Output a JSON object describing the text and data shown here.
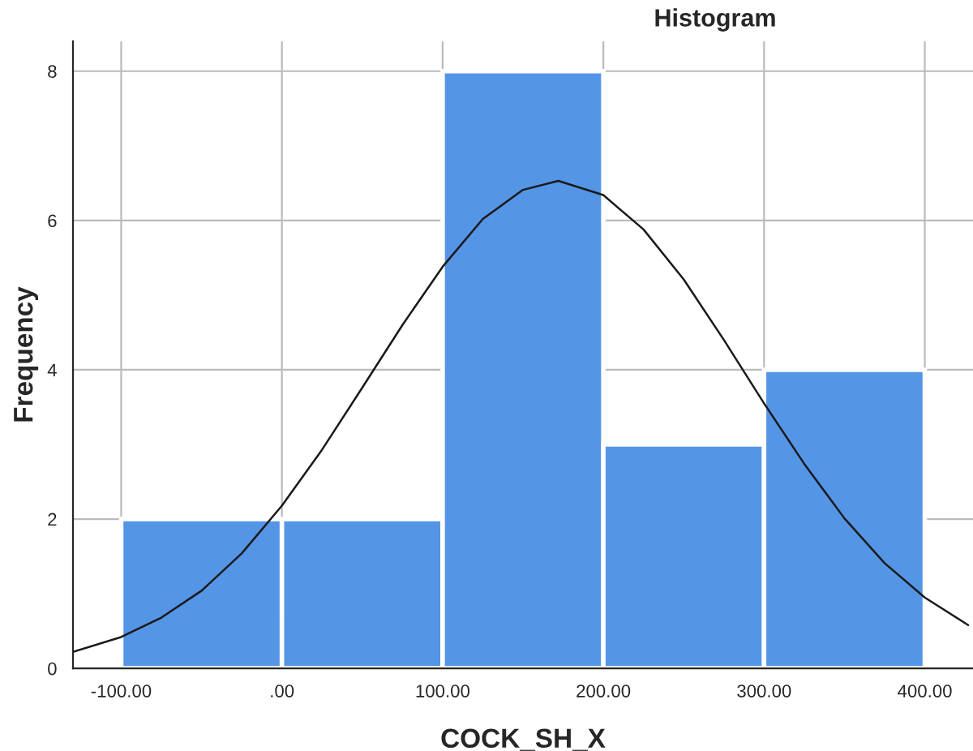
{
  "chart_data": {
    "type": "histogram",
    "title": "Histogram",
    "xlabel": "COCK_SH_X",
    "ylabel": "Frequency",
    "bins": [
      -100,
      0,
      100,
      200,
      300,
      400
    ],
    "values": [
      2,
      2,
      8,
      3,
      4
    ],
    "color": "#5595e6",
    "series": [
      {
        "type": "line",
        "color": "#1a1a1a",
        "x": [
          -130,
          -100,
          -75,
          -50,
          -25,
          0,
          25,
          50,
          75,
          100,
          125,
          150,
          172,
          200,
          225,
          250,
          275,
          300,
          325,
          350,
          375,
          400,
          427
        ],
        "values": [
          0.22,
          0.42,
          0.68,
          1.04,
          1.54,
          2.18,
          2.93,
          3.76,
          4.6,
          5.38,
          6.02,
          6.41,
          6.53,
          6.34,
          5.88,
          5.21,
          4.4,
          3.55,
          2.74,
          2.01,
          1.41,
          0.95,
          0.58
        ]
      }
    ],
    "xlim": [
      -130,
      430
    ],
    "ylim": [
      0,
      8.4
    ],
    "xticks": [
      {
        "value": -100,
        "label": "-100.00"
      },
      {
        "value": 0,
        "label": ".00"
      },
      {
        "value": 100,
        "label": "100.00"
      },
      {
        "value": 200,
        "label": "200.00"
      },
      {
        "value": 300,
        "label": "300.00"
      },
      {
        "value": 400,
        "label": "400.00"
      }
    ],
    "yticks": [
      0,
      2,
      4,
      6,
      8
    ],
    "grid": true,
    "legend": false
  }
}
